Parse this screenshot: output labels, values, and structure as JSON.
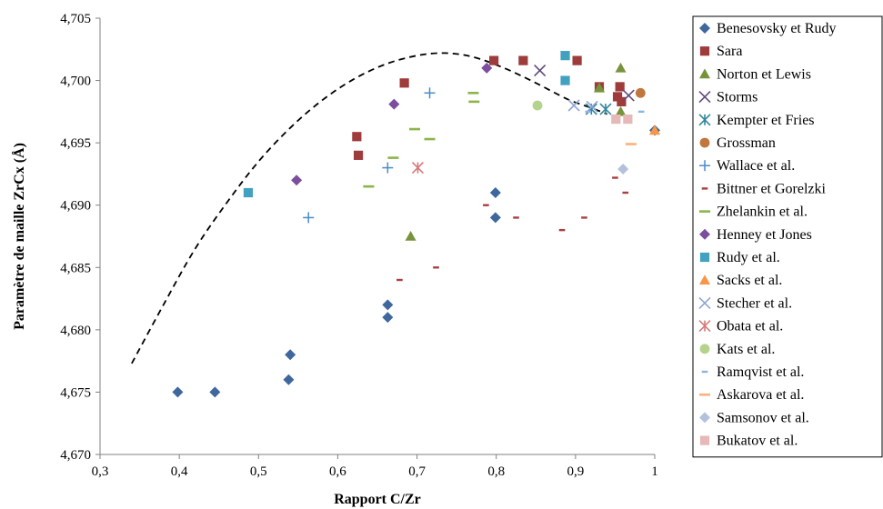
{
  "chart_data": {
    "type": "scatter",
    "xlabel": "Rapport C/Zr",
    "ylabel": "Paramètre de maille ZrCx (Å)",
    "xlim": [
      0.3,
      1.0
    ],
    "ylim": [
      4.67,
      4.705
    ],
    "x_ticks": [
      "0,3",
      "0,4",
      "0,5",
      "0,6",
      "0,7",
      "0,8",
      "0,9",
      "1"
    ],
    "y_ticks": [
      "4,670",
      "4,675",
      "4,680",
      "4,685",
      "4,690",
      "4,695",
      "4,700",
      "4,705"
    ],
    "grid": false,
    "legend_position": "right",
    "series": [
      {
        "name": "Benesovsky et Rudy",
        "marker": "diamond",
        "color": "#3f679e",
        "points": [
          [
            0.398,
            4.675
          ],
          [
            0.445,
            4.675
          ],
          [
            0.538,
            4.676
          ],
          [
            0.54,
            4.678
          ],
          [
            0.663,
            4.681
          ],
          [
            0.663,
            4.682
          ],
          [
            0.799,
            4.689
          ],
          [
            0.799,
            4.691
          ],
          [
            1.0,
            4.696
          ]
        ]
      },
      {
        "name": "Sara",
        "marker": "square",
        "color": "#9e3b3b",
        "points": [
          [
            0.624,
            4.6955
          ],
          [
            0.626,
            4.694
          ],
          [
            0.684,
            4.6998
          ],
          [
            0.797,
            4.7016
          ],
          [
            0.834,
            4.7016
          ],
          [
            0.902,
            4.7016
          ],
          [
            0.93,
            4.6995
          ],
          [
            0.953,
            4.6987
          ],
          [
            0.956,
            4.6995
          ],
          [
            0.958,
            4.6983
          ]
        ]
      },
      {
        "name": "Norton et Lewis",
        "marker": "triangle",
        "color": "#77933c",
        "points": [
          [
            0.692,
            4.6875
          ],
          [
            0.93,
            4.6994
          ],
          [
            0.957,
            4.701
          ],
          [
            0.957,
            4.6975
          ]
        ]
      },
      {
        "name": "Storms",
        "marker": "x",
        "color": "#604a7b",
        "points": [
          [
            0.855,
            4.7008
          ],
          [
            0.967,
            4.6988
          ]
        ]
      },
      {
        "name": "Kempter et Fries",
        "marker": "asterisk",
        "color": "#31859c",
        "points": [
          [
            0.92,
            4.6977
          ],
          [
            0.938,
            4.6977
          ]
        ]
      },
      {
        "name": "Grossman",
        "marker": "circle",
        "color": "#c0763c",
        "points": [
          [
            0.982,
            4.699
          ]
        ]
      },
      {
        "name": "Wallace et al.",
        "marker": "plus",
        "color": "#4a8cc9",
        "points": [
          [
            0.563,
            4.689
          ],
          [
            0.663,
            4.693
          ],
          [
            0.716,
            4.699
          ]
        ]
      },
      {
        "name": "Bittner et Gorelzki",
        "marker": "shortdash",
        "color": "#a94040",
        "points": [
          [
            0.678,
            4.684
          ],
          [
            0.724,
            4.685
          ],
          [
            0.787,
            4.69
          ],
          [
            0.825,
            4.689
          ],
          [
            0.883,
            4.688
          ],
          [
            0.911,
            4.689
          ],
          [
            0.95,
            4.6922
          ],
          [
            0.963,
            4.691
          ]
        ]
      },
      {
        "name": "Zhelankin et al.",
        "marker": "dash",
        "color": "#8bb54a",
        "points": [
          [
            0.639,
            4.6915
          ],
          [
            0.67,
            4.6938
          ],
          [
            0.697,
            4.6961
          ],
          [
            0.716,
            4.6953
          ],
          [
            0.771,
            4.699
          ],
          [
            0.772,
            4.6983
          ]
        ]
      },
      {
        "name": "Henney et Jones",
        "marker": "diamond",
        "color": "#7b4e9e",
        "points": [
          [
            0.548,
            4.692
          ],
          [
            0.671,
            4.6981
          ],
          [
            0.788,
            4.701
          ]
        ]
      },
      {
        "name": "Rudy et al.",
        "marker": "square",
        "color": "#41a1bf",
        "points": [
          [
            0.487,
            4.691
          ],
          [
            0.887,
            4.702
          ],
          [
            0.887,
            4.7
          ]
        ]
      },
      {
        "name": "Sacks et al.",
        "marker": "triangle",
        "color": "#f79646",
        "points": [
          [
            1.0,
            4.696
          ]
        ]
      },
      {
        "name": "Stecher et al.",
        "marker": "x",
        "color": "#8ea5d3",
        "points": [
          [
            0.898,
            4.698
          ],
          [
            0.921,
            4.6979
          ]
        ]
      },
      {
        "name": "Obata et al.",
        "marker": "asterisk",
        "color": "#d47a7a",
        "points": [
          [
            0.701,
            4.693
          ]
        ]
      },
      {
        "name": "Kats et al.",
        "marker": "circle",
        "color": "#b5d38c",
        "points": [
          [
            0.852,
            4.698
          ]
        ]
      },
      {
        "name": "Ramqvist et al.",
        "marker": "shortdash",
        "color": "#8eb4e3",
        "points": [
          [
            0.916,
            4.6975
          ],
          [
            0.983,
            4.6975
          ]
        ]
      },
      {
        "name": "Askarova et al.",
        "marker": "dash",
        "color": "#fab27b",
        "points": [
          [
            0.97,
            4.6949
          ]
        ]
      },
      {
        "name": "Samsonov et al.",
        "marker": "diamond",
        "color": "#b3c1dc",
        "points": [
          [
            0.96,
            4.6929
          ]
        ]
      },
      {
        "name": "Bukatov et al.",
        "marker": "square",
        "color": "#e6b9b8",
        "points": [
          [
            0.951,
            4.6969
          ],
          [
            0.966,
            4.6969
          ]
        ]
      }
    ],
    "trend_curve": {
      "style": "dashed",
      "color": "#000000",
      "points": [
        [
          0.34,
          4.6773
        ],
        [
          0.38,
          4.682
        ],
        [
          0.42,
          4.6865
        ],
        [
          0.46,
          4.6902
        ],
        [
          0.5,
          4.6935
        ],
        [
          0.54,
          4.6962
        ],
        [
          0.58,
          4.6984
        ],
        [
          0.62,
          4.7001
        ],
        [
          0.66,
          4.7013
        ],
        [
          0.7,
          4.702
        ],
        [
          0.735,
          4.7022
        ],
        [
          0.77,
          4.7019
        ],
        [
          0.81,
          4.701
        ],
        [
          0.85,
          4.6998
        ],
        [
          0.89,
          4.6985
        ],
        [
          0.92,
          4.6978
        ],
        [
          0.94,
          4.6973
        ]
      ]
    }
  }
}
